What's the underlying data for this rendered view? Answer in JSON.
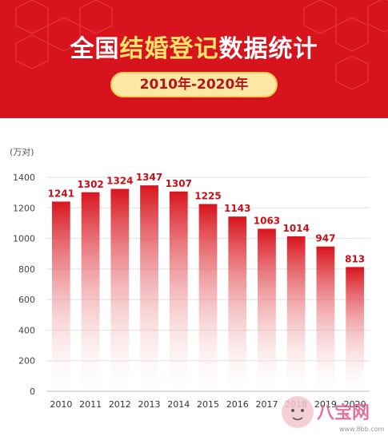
{
  "header": {
    "title_plain": "全国",
    "title_highlight": "结婚登记",
    "title_tail": "数据统计",
    "period": "2010年-2020年"
  },
  "colors": {
    "header_bg": "#d7141d",
    "title_highlight": "#ffe36a",
    "pill_bg": "#fde7a4",
    "bar_top": "#d9141d",
    "bar_bottom": "#ffffff",
    "label": "#c8101a"
  },
  "watermark": {
    "text": "八宝网",
    "sub": "www.8bb.com"
  },
  "chart_data": {
    "type": "bar",
    "ylabel": "(万对)",
    "categories": [
      "2010",
      "2011",
      "2012",
      "2013",
      "2014",
      "2015",
      "2016",
      "2017",
      "2018",
      "2019",
      "2020"
    ],
    "values": [
      1241,
      1302,
      1324,
      1347,
      1307,
      1225,
      1143,
      1063,
      1014,
      947,
      813
    ],
    "yticks": [
      0,
      200,
      400,
      600,
      800,
      1000,
      1200,
      1400
    ],
    "ylim": [
      0,
      1400
    ],
    "grid": true,
    "legend": "none"
  }
}
